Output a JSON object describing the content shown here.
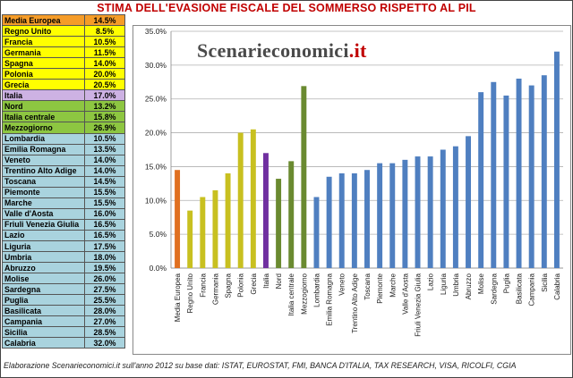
{
  "title": "STIMA DELL'EVASIONE FISCALE DEL SOMMERSO RISPETTO AL PIL",
  "watermark": {
    "main": "Scenarieconomici",
    "suffix": ".it"
  },
  "footer": "Elaborazione Scenarieconomici.it sull'anno 2012 su base dati: ISTAT, EUROSTAT, FMI, BANCA D'ITALIA, TAX RESEARCH, VISA, RICOLFI, CGIA",
  "table": [
    {
      "label": "Media Europea",
      "value": "14.5%",
      "bg": "#f59c28"
    },
    {
      "label": "Regno Unito",
      "value": "8.5%",
      "bg": "#ffff00"
    },
    {
      "label": "Francia",
      "value": "10.5%",
      "bg": "#ffff00"
    },
    {
      "label": "Germania",
      "value": "11.5%",
      "bg": "#ffff00"
    },
    {
      "label": "Spagna",
      "value": "14.0%",
      "bg": "#ffff00"
    },
    {
      "label": "Polonia",
      "value": "20.0%",
      "bg": "#ffff00"
    },
    {
      "label": "Grecia",
      "value": "20.5%",
      "bg": "#ffff00"
    },
    {
      "label": "Italia",
      "value": "17.0%",
      "bg": "#cdb2e3"
    },
    {
      "label": "Nord",
      "value": "13.2%",
      "bg": "#8dc641"
    },
    {
      "label": "Italia centrale",
      "value": "15.8%",
      "bg": "#8dc641"
    },
    {
      "label": "Mezzogiorno",
      "value": "26.9%",
      "bg": "#8dc641"
    },
    {
      "label": "Lombardia",
      "value": "10.5%",
      "bg": "#a9d3de"
    },
    {
      "label": "Emilia Romagna",
      "value": "13.5%",
      "bg": "#a9d3de"
    },
    {
      "label": "Veneto",
      "value": "14.0%",
      "bg": "#a9d3de"
    },
    {
      "label": "Trentino Alto Adige",
      "value": "14.0%",
      "bg": "#a9d3de"
    },
    {
      "label": "Toscana",
      "value": "14.5%",
      "bg": "#a9d3de"
    },
    {
      "label": "Piemonte",
      "value": "15.5%",
      "bg": "#a9d3de"
    },
    {
      "label": "Marche",
      "value": "15.5%",
      "bg": "#a9d3de"
    },
    {
      "label": "Valle d'Aosta",
      "value": "16.0%",
      "bg": "#a9d3de"
    },
    {
      "label": "Friuli Venezia Giulia",
      "value": "16.5%",
      "bg": "#a9d3de"
    },
    {
      "label": "Lazio",
      "value": "16.5%",
      "bg": "#a9d3de"
    },
    {
      "label": "Liguria",
      "value": "17.5%",
      "bg": "#a9d3de"
    },
    {
      "label": "Umbria",
      "value": "18.0%",
      "bg": "#a9d3de"
    },
    {
      "label": "Abruzzo",
      "value": "19.5%",
      "bg": "#a9d3de"
    },
    {
      "label": "Molise",
      "value": "26.0%",
      "bg": "#a9d3de"
    },
    {
      "label": "Sardegna",
      "value": "27.5%",
      "bg": "#a9d3de"
    },
    {
      "label": "Puglia",
      "value": "25.5%",
      "bg": "#a9d3de"
    },
    {
      "label": "Basilicata",
      "value": "28.0%",
      "bg": "#a9d3de"
    },
    {
      "label": "Campania",
      "value": "27.0%",
      "bg": "#a9d3de"
    },
    {
      "label": "Sicilia",
      "value": "28.5%",
      "bg": "#a9d3de"
    },
    {
      "label": "Calabria",
      "value": "32.0%",
      "bg": "#a9d3de"
    }
  ],
  "chart_data": {
    "type": "bar",
    "title": "",
    "xlabel": "",
    "ylabel": "",
    "ylim": [
      0,
      35
    ],
    "yticks": [
      "0.0%",
      "5.0%",
      "10.0%",
      "15.0%",
      "20.0%",
      "25.0%",
      "30.0%",
      "35.0%"
    ],
    "grid": true,
    "categories": [
      "Media Europea",
      "Regno Unito",
      "Francia",
      "Germania",
      "Spagna",
      "Polonia",
      "Grecia",
      "Italia",
      "Nord",
      "Italia centrale",
      "Mezzogiorno",
      "Lombardia",
      "Emilia Romagna",
      "Veneto",
      "Trentino Alto Adige",
      "Toscana",
      "Piemonte",
      "Marche",
      "Valle d'Aosta",
      "Friuli Venezia Giulia",
      "Lazio",
      "Liguria",
      "Umbria",
      "Abruzzo",
      "Molise",
      "Sardegna",
      "Puglia",
      "Basilicata",
      "Campania",
      "Sicilia",
      "Calabria"
    ],
    "values": [
      14.5,
      8.5,
      10.5,
      11.5,
      14.0,
      20.0,
      20.5,
      17.0,
      13.2,
      15.8,
      26.9,
      10.5,
      13.5,
      14.0,
      14.0,
      14.5,
      15.5,
      15.5,
      16.0,
      16.5,
      16.5,
      17.5,
      18.0,
      19.5,
      26.0,
      27.5,
      25.5,
      28.0,
      27.0,
      28.5,
      32.0
    ],
    "colors": [
      "#e07020",
      "#c8c020",
      "#c8c020",
      "#c8c020",
      "#c8c020",
      "#c8c020",
      "#c8c020",
      "#7030a0",
      "#6a8a30",
      "#6a8a30",
      "#6a8a30",
      "#4f7fc0",
      "#4f7fc0",
      "#4f7fc0",
      "#4f7fc0",
      "#4f7fc0",
      "#4f7fc0",
      "#4f7fc0",
      "#4f7fc0",
      "#4f7fc0",
      "#4f7fc0",
      "#4f7fc0",
      "#4f7fc0",
      "#4f7fc0",
      "#4f7fc0",
      "#4f7fc0",
      "#4f7fc0",
      "#4f7fc0",
      "#4f7fc0",
      "#4f7fc0",
      "#4f7fc0"
    ]
  }
}
